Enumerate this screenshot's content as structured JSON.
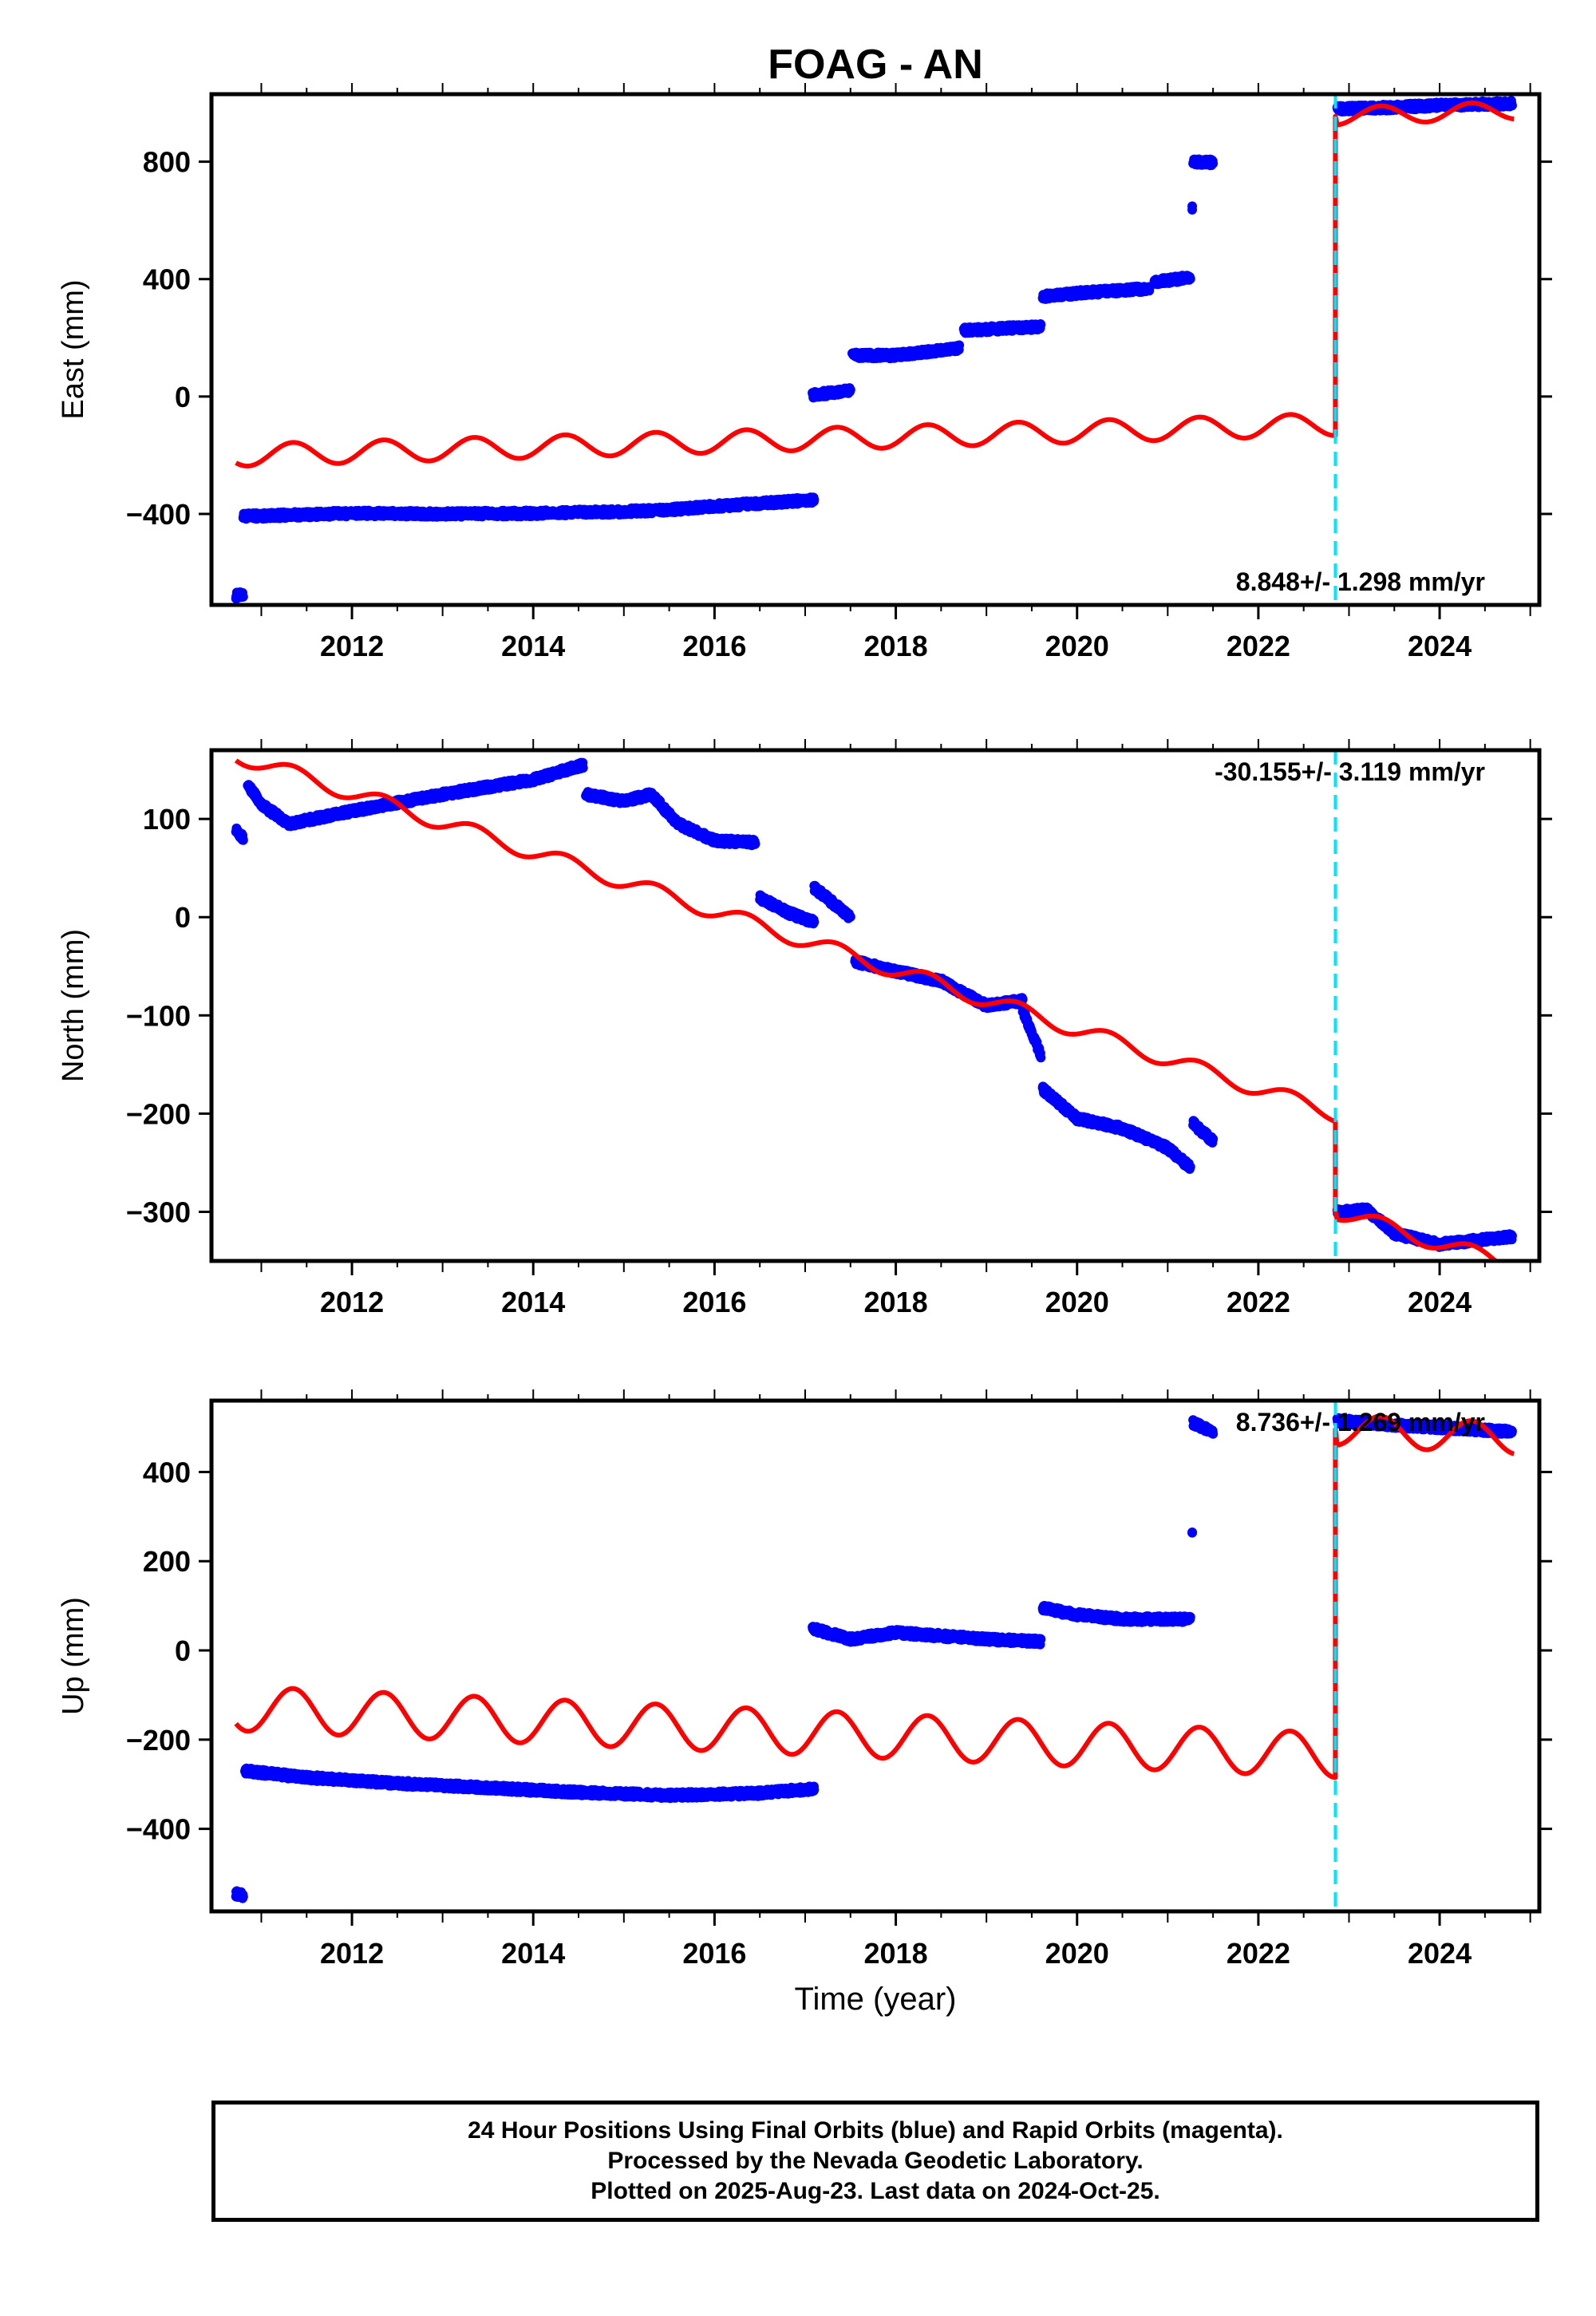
{
  "title": "FOAG - AN",
  "xlabel": "Time (year)",
  "x_ticks": [
    2012,
    2014,
    2016,
    2018,
    2020,
    2022,
    2024
  ],
  "xlim": [
    2010.45,
    2025.1
  ],
  "equipment_change_year": 2022.85,
  "colors": {
    "data": "#0000ff",
    "model": "#ff0000",
    "marker": "#00e5ff",
    "axis": "#000000"
  },
  "footer": {
    "line1": "24 Hour Positions Using Final Orbits (blue) and Rapid Orbits (magenta).",
    "line2": "Processed by the Nevada Geodetic Laboratory.",
    "line3": "Plotted on 2025-Aug-23. Last data on 2024-Oct-25."
  },
  "chart_data": [
    {
      "type": "scatter",
      "panel": "east",
      "ylabel": "East (mm)",
      "ylim": [
        -710,
        1030
      ],
      "y_ticks": [
        -400,
        0,
        400,
        800
      ],
      "rate_label": "8.848+/- 1.298 mm/yr",
      "rate_position": "bottom-right",
      "segments": [
        {
          "x": [
            2010.72,
            2010.8
          ],
          "y": [
            -678,
            -675
          ]
        },
        {
          "x": [
            2010.8,
            2012.0,
            2013.0,
            2014.0,
            2015.0,
            2015.5,
            2016.0,
            2017.1
          ],
          "y": [
            -408,
            -398,
            -400,
            -398,
            -392,
            -386,
            -374,
            -352
          ]
        },
        {
          "x": [
            2017.08,
            2017.5
          ],
          "y": [
            5,
            20
          ]
        },
        {
          "x": [
            2017.52,
            2018.0,
            2018.7
          ],
          "y": [
            140,
            140,
            165
          ]
        },
        {
          "x": [
            2018.75,
            2019.6
          ],
          "y": [
            225,
            238
          ]
        },
        {
          "x": [
            2019.62,
            2020.0,
            2020.8
          ],
          "y": [
            340,
            352,
            368
          ]
        },
        {
          "x": [
            2020.85,
            2021.25
          ],
          "y": [
            390,
            405
          ]
        },
        {
          "x": [
            2021.27,
            2021.27
          ],
          "y": [
            640,
            640
          ]
        },
        {
          "x": [
            2021.28,
            2021.5
          ],
          "y": [
            798,
            798
          ]
        },
        {
          "x": [
            2022.87,
            2023.5,
            2024.0,
            2024.8
          ],
          "y": [
            980,
            985,
            992,
            998
          ]
        }
      ],
      "model": {
        "pre": {
          "start_year": 2010.72,
          "start_value": -200,
          "end_year": 2022.85,
          "end_value": -95,
          "seasonal_amplitude": 38
        },
        "post": {
          "start_year": 2022.87,
          "start_value": 955,
          "end_year": 2024.82,
          "end_value": 975,
          "seasonal_amplitude": 30
        }
      }
    },
    {
      "type": "scatter",
      "panel": "north",
      "ylabel": "North (mm)",
      "ylim": [
        -350,
        170
      ],
      "y_ticks": [
        -300,
        -200,
        -100,
        0,
        100
      ],
      "rate_label": "-30.155+/- 3.119 mm/yr",
      "rate_position": "top-right",
      "segments": [
        {
          "x": [
            2010.72,
            2010.8
          ],
          "y": [
            90,
            80
          ]
        },
        {
          "x": [
            2010.85,
            2011.0,
            2011.3,
            2012.0,
            2013.0,
            2014.0,
            2014.55
          ],
          "y": [
            135,
            115,
            95,
            108,
            125,
            140,
            155
          ]
        },
        {
          "x": [
            2014.58,
            2015.0,
            2015.3,
            2015.6,
            2016.0,
            2016.45
          ],
          "y": [
            125,
            118,
            125,
            95,
            78,
            76
          ]
        },
        {
          "x": [
            2016.5,
            2016.8,
            2017.1
          ],
          "y": [
            20,
            5,
            -5
          ]
        },
        {
          "x": [
            2017.1,
            2017.5
          ],
          "y": [
            30,
            0
          ]
        },
        {
          "x": [
            2017.55,
            2018.0,
            2018.5,
            2019.0,
            2019.4
          ],
          "y": [
            -45,
            -55,
            -65,
            -90,
            -85
          ]
        },
        {
          "x": [
            2019.4,
            2019.6
          ],
          "y": [
            -95,
            -140
          ]
        },
        {
          "x": [
            2019.62,
            2020.0,
            2020.5,
            2021.0,
            2021.25
          ],
          "y": [
            -175,
            -205,
            -215,
            -235,
            -255
          ]
        },
        {
          "x": [
            2021.28,
            2021.5
          ],
          "y": [
            -210,
            -228
          ]
        },
        {
          "x": [
            2022.87,
            2023.2,
            2023.5,
            2024.0,
            2024.8
          ],
          "y": [
            -300,
            -298,
            -322,
            -333,
            -325
          ]
        }
      ],
      "model": {
        "pre": {
          "start_year": 2010.72,
          "start_value": 165,
          "end_year": 2022.85,
          "end_value": -200,
          "seasonal_amplitude": 8
        },
        "post": {
          "start_year": 2022.87,
          "start_value": -300,
          "end_year": 2024.82,
          "end_value": -355,
          "seasonal_amplitude": 8
        }
      }
    },
    {
      "type": "scatter",
      "panel": "up",
      "ylabel": "Up (mm)",
      "ylim": [
        -585,
        560
      ],
      "y_ticks": [
        -400,
        -200,
        0,
        200,
        400
      ],
      "rate_label": "8.736+/- 1.269 mm/yr",
      "rate_position": "top-right",
      "segments": [
        {
          "x": [
            2010.72,
            2010.8
          ],
          "y": [
            -545,
            -550
          ]
        },
        {
          "x": [
            2010.82,
            2011.5,
            2012.5,
            2013.5,
            2014.5,
            2015.5,
            2016.5,
            2017.1
          ],
          "y": [
            -270,
            -285,
            -298,
            -308,
            -318,
            -325,
            -320,
            -310
          ]
        },
        {
          "x": [
            2017.08,
            2017.5,
            2018.0,
            2019.0,
            2019.6
          ],
          "y": [
            50,
            25,
            40,
            25,
            20
          ]
        },
        {
          "x": [
            2019.62,
            2020.0,
            2020.5,
            2021.25
          ],
          "y": [
            95,
            80,
            70,
            70
          ]
        },
        {
          "x": [
            2021.27,
            2021.27
          ],
          "y": [
            260,
            260
          ]
        },
        {
          "x": [
            2021.28,
            2021.5
          ],
          "y": [
            510,
            490
          ]
        },
        {
          "x": [
            2022.87,
            2023.5,
            2024.0,
            2024.8
          ],
          "y": [
            515,
            505,
            500,
            490
          ]
        }
      ],
      "model": {
        "pre": {
          "start_year": 2010.72,
          "start_value": -130,
          "end_year": 2022.85,
          "end_value": -235,
          "seasonal_amplitude": 50
        },
        "post": {
          "start_year": 2022.87,
          "start_value": 495,
          "end_year": 2024.82,
          "end_value": 475,
          "seasonal_amplitude": 35
        }
      }
    }
  ]
}
